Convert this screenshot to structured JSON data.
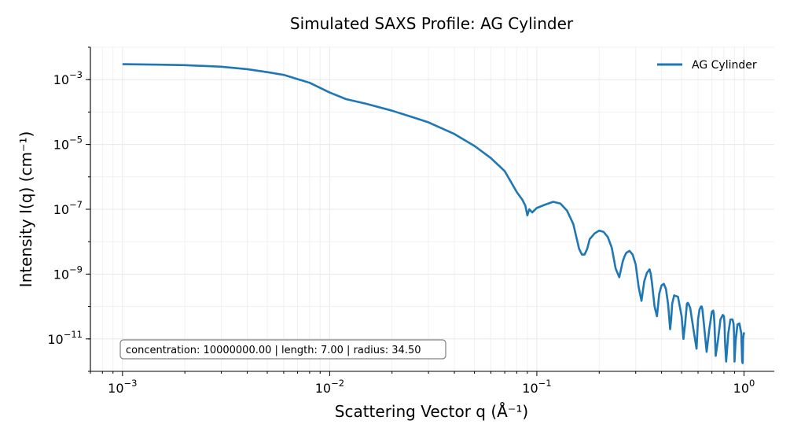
{
  "chart_data": {
    "type": "line",
    "title": "Simulated SAXS Profile: AG Cylinder",
    "xlabel": "Scattering Vector q (Å⁻¹)",
    "ylabel": "Intensity I(q) (cm⁻¹)",
    "xscale": "log",
    "yscale": "log",
    "xlim": [
      0.0007,
      1.4
    ],
    "ylim": [
      1e-12,
      0.01
    ],
    "xticks": [
      {
        "value": 0.001,
        "base": "10",
        "exp": "−3"
      },
      {
        "value": 0.01,
        "base": "10",
        "exp": "−2"
      },
      {
        "value": 0.1,
        "base": "10",
        "exp": "−1"
      },
      {
        "value": 1,
        "base": "10",
        "exp": "0"
      }
    ],
    "yticks": [
      {
        "value": 0.001,
        "base": "10",
        "exp": "−3"
      },
      {
        "value": 1e-05,
        "base": "10",
        "exp": "−5"
      },
      {
        "value": 1e-07,
        "base": "10",
        "exp": "−7"
      },
      {
        "value": 1e-09,
        "base": "10",
        "exp": "−9"
      },
      {
        "value": 1e-11,
        "base": "10",
        "exp": "−11"
      }
    ],
    "grid": true,
    "legend_position": "top-right",
    "series": [
      {
        "name": "AG Cylinder",
        "color": "#1f77b4",
        "x": [
          0.001,
          0.0015,
          0.002,
          0.003,
          0.004,
          0.005,
          0.006,
          0.008,
          0.01,
          0.012,
          0.015,
          0.02,
          0.025,
          0.03,
          0.04,
          0.05,
          0.06,
          0.07,
          0.075,
          0.08,
          0.085,
          0.088,
          0.09,
          0.092,
          0.095,
          0.1,
          0.11,
          0.12,
          0.13,
          0.14,
          0.15,
          0.16,
          0.165,
          0.17,
          0.175,
          0.18,
          0.19,
          0.2,
          0.21,
          0.22,
          0.23,
          0.24,
          0.25,
          0.26,
          0.265,
          0.27,
          0.28,
          0.29,
          0.3,
          0.31,
          0.32,
          0.33,
          0.34,
          0.35,
          0.355,
          0.36,
          0.37,
          0.38,
          0.39,
          0.4,
          0.41,
          0.42,
          0.43,
          0.44,
          0.445,
          0.45,
          0.46,
          0.48,
          0.5,
          0.51,
          0.52,
          0.53,
          0.535,
          0.54,
          0.55,
          0.57,
          0.59,
          0.6,
          0.61,
          0.62,
          0.625,
          0.63,
          0.64,
          0.66,
          0.68,
          0.7,
          0.71,
          0.715,
          0.72,
          0.73,
          0.75,
          0.77,
          0.79,
          0.8,
          0.805,
          0.81,
          0.82,
          0.84,
          0.86,
          0.88,
          0.89,
          0.895,
          0.9,
          0.91,
          0.93,
          0.95,
          0.97,
          0.98,
          0.985,
          0.99,
          1.0
        ],
        "y": [
          0.003,
          0.0029,
          0.0028,
          0.0025,
          0.0021,
          0.0017,
          0.0014,
          0.0008,
          0.0004,
          0.00025,
          0.00018,
          0.00011,
          7e-05,
          4.8e-05,
          2.1e-05,
          9e-06,
          3.8e-06,
          1.5e-06,
          7e-07,
          3.4e-07,
          2e-07,
          1.3e-07,
          6.5e-08,
          1e-07,
          8e-08,
          1.1e-07,
          1.4e-07,
          1.7e-07,
          1.5e-07,
          9e-08,
          3.5e-08,
          6e-09,
          4e-09,
          4e-09,
          6e-09,
          1.2e-08,
          1.8e-08,
          2.2e-08,
          2e-08,
          1.4e-08,
          6.5e-09,
          1.5e-09,
          8e-10,
          2.5e-09,
          3.5e-09,
          4.5e-09,
          5.2e-09,
          4e-09,
          2e-09,
          4e-10,
          1.5e-10,
          6e-10,
          1.1e-09,
          1.4e-09,
          1e-09,
          5e-10,
          1e-10,
          5e-11,
          2.5e-10,
          4.5e-10,
          5e-10,
          3.5e-10,
          1.2e-10,
          2e-11,
          4e-11,
          1.2e-10,
          2.2e-10,
          2e-10,
          5e-11,
          1e-11,
          3e-11,
          1.2e-10,
          1.3e-10,
          1.2e-10,
          9e-11,
          2e-11,
          5e-12,
          4e-11,
          8e-11,
          1e-10,
          1e-10,
          8e-11,
          3e-11,
          4e-12,
          2e-11,
          7e-11,
          7.5e-11,
          6e-11,
          3e-11,
          3e-12,
          1e-11,
          4e-11,
          5.5e-11,
          5e-11,
          3e-11,
          8e-12,
          2e-12,
          1.5e-11,
          4e-11,
          4e-11,
          3e-11,
          1.5e-11,
          2e-12,
          8e-12,
          2.8e-11,
          3e-11,
          1.5e-11,
          2e-12,
          1.8e-12,
          1e-11,
          1.6e-11
        ]
      }
    ],
    "annotation": "concentration: 10000000.00 | length: 7.00 | radius: 34.50"
  }
}
